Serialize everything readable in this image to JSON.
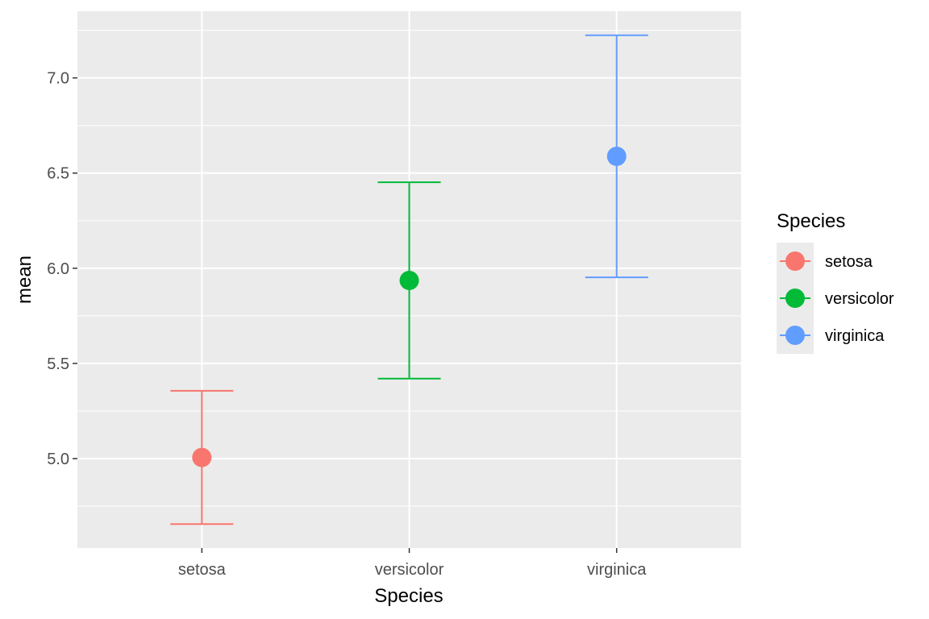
{
  "chart_data": {
    "type": "scatter",
    "subtype": "point-with-errorbars",
    "categories": [
      "setosa",
      "versicolor",
      "virginica"
    ],
    "xlabel": "Species",
    "ylabel": "mean",
    "ylim": [
      4.53,
      7.35
    ],
    "yticks": [
      5.0,
      5.5,
      6.0,
      6.5,
      7.0
    ],
    "ytick_labels": [
      "5.0",
      "5.5",
      "6.0",
      "6.5",
      "7.0"
    ],
    "series": [
      {
        "name": "setosa",
        "color": "#F8766D",
        "mean": 5.006,
        "lower": 4.656,
        "upper": 5.356
      },
      {
        "name": "versicolor",
        "color": "#00BA38",
        "mean": 5.936,
        "lower": 5.42,
        "upper": 6.452
      },
      {
        "name": "virginica",
        "color": "#619CFF",
        "mean": 6.588,
        "lower": 5.952,
        "upper": 7.224
      }
    ],
    "grid": true,
    "panel_background": "#EBEBEB",
    "legend": {
      "title": "Species",
      "position": "right"
    }
  }
}
